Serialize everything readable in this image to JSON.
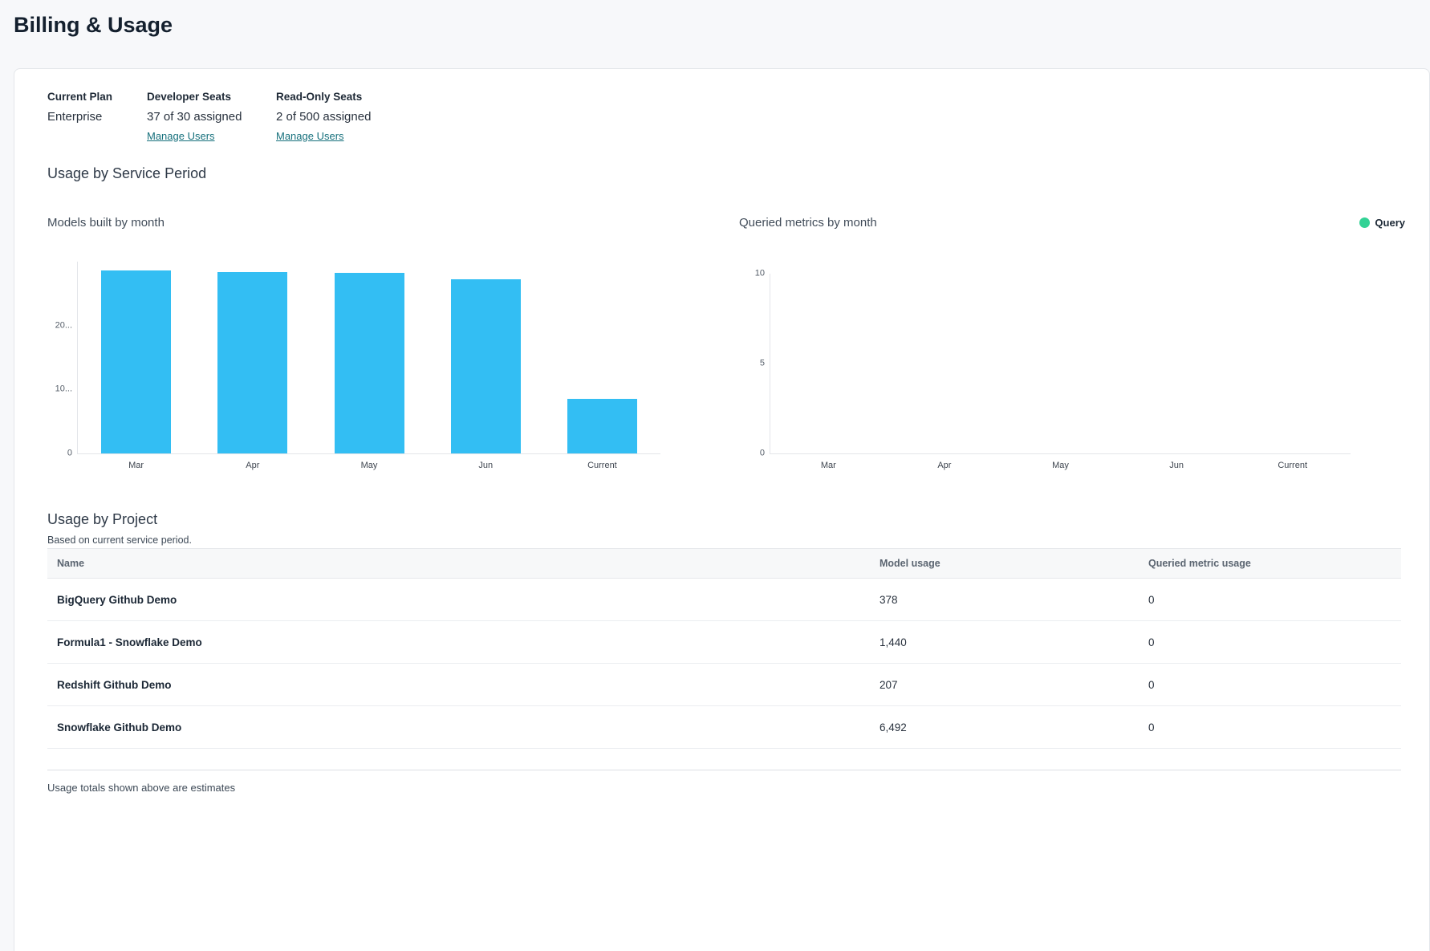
{
  "page": {
    "title": "Billing & Usage"
  },
  "plan": {
    "current_plan_label": "Current Plan",
    "current_plan_value": "Enterprise",
    "developer_seats_label": "Developer Seats",
    "developer_seats_value": "37 of 30 assigned",
    "developer_manage_link": "Manage Users",
    "readonly_seats_label": "Read-Only Seats",
    "readonly_seats_value": "2 of 500 assigned",
    "readonly_manage_link": "Manage Users"
  },
  "usage_section": {
    "title": "Usage by Service Period"
  },
  "chart_data": [
    {
      "type": "bar",
      "title": "Models built by month",
      "categories": [
        "Mar",
        "Apr",
        "May",
        "Jun",
        "Current"
      ],
      "values": [
        28600,
        28400,
        28200,
        27300,
        8517
      ],
      "bar_color": "#33bef3",
      "ylim": [
        0,
        30000
      ],
      "yticks": [
        {
          "value": 0,
          "label": "0"
        },
        {
          "value": 10000,
          "label": "10..."
        },
        {
          "value": 20000,
          "label": "20..."
        }
      ],
      "xlabel": "",
      "ylabel": "",
      "grid": false,
      "legend_position": "none"
    },
    {
      "type": "bar",
      "title": "Queried metrics by month",
      "categories": [
        "Mar",
        "Apr",
        "May",
        "Jun",
        "Current"
      ],
      "values": [
        0,
        0,
        0,
        0,
        0
      ],
      "bar_color": "#32d295",
      "ylim": [
        0,
        10
      ],
      "yticks": [
        {
          "value": 0,
          "label": "0"
        },
        {
          "value": 5,
          "label": "5"
        },
        {
          "value": 10,
          "label": "10"
        }
      ],
      "xlabel": "",
      "ylabel": "",
      "grid": false,
      "legend_position": "top-right",
      "legend": {
        "label": "Query",
        "color": "#32d295"
      }
    }
  ],
  "project_section": {
    "title": "Usage by Project",
    "subtitle": "Based on current service period.",
    "table": {
      "columns": [
        "Name",
        "Model usage",
        "Queried metric usage"
      ],
      "rows": [
        {
          "name": "BigQuery Github Demo",
          "model_usage": "378",
          "queried_metric_usage": "0"
        },
        {
          "name": "Formula1 - Snowflake Demo",
          "model_usage": "1,440",
          "queried_metric_usage": "0"
        },
        {
          "name": "Redshift Github Demo",
          "model_usage": "207",
          "queried_metric_usage": "0"
        },
        {
          "name": "Snowflake Github Demo",
          "model_usage": "6,492",
          "queried_metric_usage": "0"
        }
      ]
    },
    "footnote": "Usage totals shown above are estimates"
  }
}
